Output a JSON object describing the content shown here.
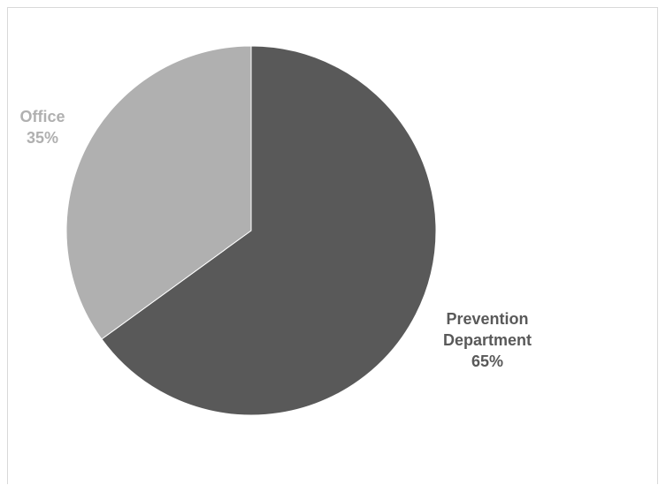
{
  "chart_data": {
    "type": "pie",
    "title": "",
    "slices": [
      {
        "label": "Prevention Department",
        "label_lines": [
          "Prevention",
          "Department"
        ],
        "value": 65,
        "percent_label": "65%",
        "color": "#595959",
        "label_color": "#595959"
      },
      {
        "label": "Office",
        "label_lines": [
          "Office"
        ],
        "value": 35,
        "percent_label": "35%",
        "color": "#b0b0b0",
        "label_color": "#b0b0b0"
      }
    ],
    "start_angle_deg": 0,
    "direction": "clockwise",
    "legend": "none",
    "labels": "outside"
  }
}
